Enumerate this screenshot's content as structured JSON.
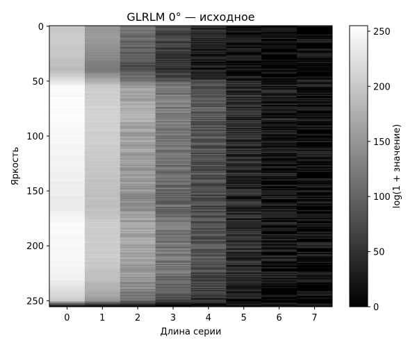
{
  "chart_data": {
    "type": "heatmap",
    "title": "GLRLM 0° — исходное",
    "xlabel": "Длина серии",
    "ylabel": "Яркость",
    "x_ticks": [
      0,
      1,
      2,
      3,
      4,
      5,
      6,
      7
    ],
    "y_ticks": [
      0,
      50,
      100,
      150,
      200,
      250
    ],
    "xlim": [
      -0.5,
      7.5
    ],
    "ylim": [
      255.5,
      -0.5
    ],
    "colormap": "gray",
    "colorbar": {
      "label": "log(1 + значение)",
      "ticks": [
        0,
        50,
        100,
        150,
        200,
        250
      ],
      "range": [
        0,
        255
      ]
    },
    "value_profile": {
      "run_lengths": [
        0,
        1,
        2,
        3,
        4,
        5,
        6,
        7
      ],
      "intensity_levels": [
        0,
        10,
        25,
        40,
        55,
        80,
        110,
        140,
        165,
        180,
        210,
        230,
        245,
        250,
        255
      ],
      "approx_values": [
        [
          200,
          150,
          110,
          70,
          40,
          20,
          10,
          6
        ],
        [
          205,
          155,
          110,
          70,
          40,
          20,
          10,
          6
        ],
        [
          200,
          140,
          95,
          55,
          30,
          15,
          8,
          5
        ],
        [
          185,
          120,
          75,
          45,
          22,
          12,
          6,
          4
        ],
        [
          250,
          205,
          160,
          120,
          80,
          45,
          25,
          15
        ],
        [
          252,
          210,
          170,
          130,
          90,
          50,
          25,
          15
        ],
        [
          245,
          205,
          160,
          120,
          85,
          45,
          20,
          12
        ],
        [
          240,
          195,
          150,
          110,
          75,
          40,
          20,
          10
        ],
        [
          235,
          190,
          145,
          105,
          70,
          38,
          18,
          10
        ],
        [
          250,
          205,
          165,
          125,
          85,
          45,
          22,
          12
        ],
        [
          248,
          205,
          165,
          125,
          85,
          45,
          22,
          12
        ],
        [
          240,
          190,
          150,
          110,
          75,
          40,
          20,
          10
        ],
        [
          215,
          165,
          125,
          90,
          55,
          30,
          15,
          8
        ],
        [
          200,
          150,
          110,
          75,
          45,
          25,
          12,
          6
        ],
        [
          20,
          10,
          8,
          6,
          4,
          3,
          2,
          2
        ]
      ]
    }
  }
}
